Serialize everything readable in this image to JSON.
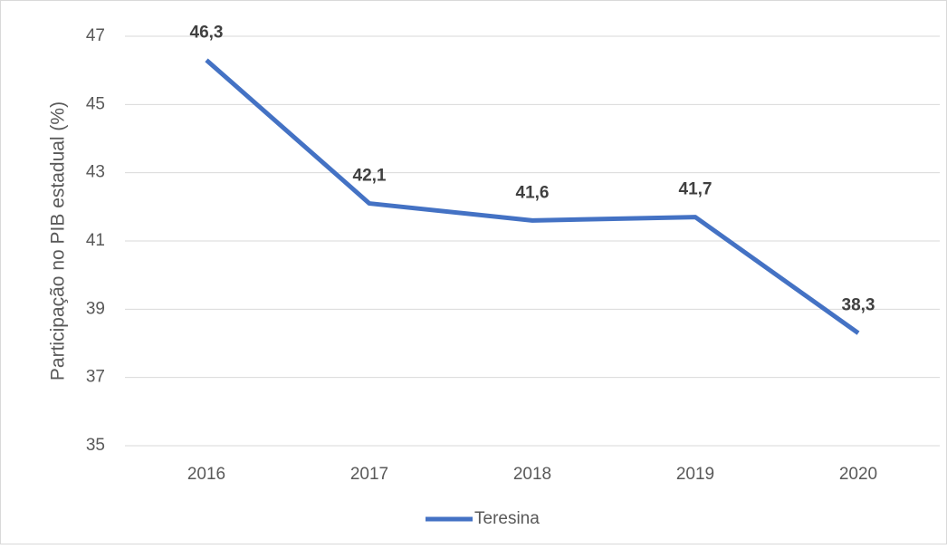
{
  "chart_data": {
    "type": "line",
    "y_label": "Participação no PIB estadual (%)",
    "categories": [
      "2016",
      "2017",
      "2018",
      "2019",
      "2020"
    ],
    "series": [
      {
        "name": "Teresina",
        "color": "#4472c4",
        "values": [
          46.3,
          42.1,
          41.6,
          41.7,
          38.3
        ],
        "value_labels": [
          "46,3",
          "42,1",
          "41,6",
          "41,7",
          "38,3"
        ]
      }
    ],
    "ylim": [
      35,
      47
    ],
    "yticks": [
      35,
      37,
      39,
      41,
      43,
      45,
      47
    ],
    "grid": true,
    "legend": "bottom"
  }
}
